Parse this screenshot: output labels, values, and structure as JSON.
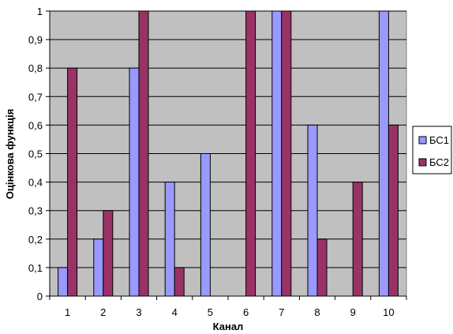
{
  "chart_data": {
    "type": "bar",
    "title": "",
    "xlabel": "Канал",
    "ylabel": "Оцінкова функція",
    "categories": [
      "1",
      "2",
      "3",
      "4",
      "5",
      "6",
      "7",
      "8",
      "9",
      "10"
    ],
    "series": [
      {
        "name": "БС1",
        "values": [
          0.1,
          0.2,
          0.8,
          0.4,
          0.5,
          0,
          1,
          0.6,
          0,
          1
        ]
      },
      {
        "name": "БС2",
        "values": [
          0.8,
          0.3,
          1,
          0.1,
          0,
          1,
          1,
          0.2,
          0.4,
          0.6
        ]
      }
    ],
    "ylim": [
      0,
      1
    ],
    "yticks": [
      "0",
      "0,1",
      "0,2",
      "0,3",
      "0,4",
      "0,5",
      "0,6",
      "0,7",
      "0,8",
      "0,9",
      "1"
    ],
    "grid": true,
    "legend_position": "right",
    "colors": {
      "plot_background": "#c0c0c0",
      "series": [
        "#9999ff",
        "#993366"
      ],
      "bar_stroke": "#000000",
      "gridline": "#000000"
    }
  }
}
